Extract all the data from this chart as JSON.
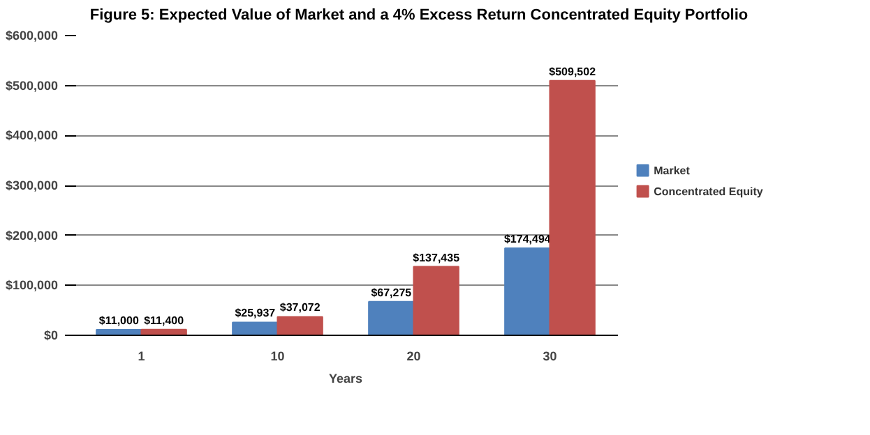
{
  "chart_data": {
    "type": "bar",
    "title": "Figure 5: Expected Value of Market and a 4% Excess Return Concentrated Equity Portfolio",
    "xlabel": "Years",
    "categories": [
      "1",
      "10",
      "20",
      "30"
    ],
    "series": [
      {
        "name": "Market",
        "color": "#4f81bd",
        "values": [
          11000,
          25937,
          67275,
          174494
        ],
        "value_labels": [
          "$11,000",
          "$25,937",
          "$67,275",
          "$174,494"
        ]
      },
      {
        "name": "Concentrated Equity",
        "color": "#c0504d",
        "values": [
          11400,
          37072,
          137435,
          509502
        ],
        "value_labels": [
          "$11,400",
          "$37,072",
          "$137,435",
          "$509,502"
        ]
      }
    ],
    "ylim": [
      0,
      600000
    ],
    "yticks": [
      {
        "value": 0,
        "label": "$0"
      },
      {
        "value": 100000,
        "label": "$100,000"
      },
      {
        "value": 200000,
        "label": "$200,000"
      },
      {
        "value": 300000,
        "label": "$300,000"
      },
      {
        "value": 400000,
        "label": "$400,000"
      },
      {
        "value": 500000,
        "label": "$500,000"
      },
      {
        "value": 600000,
        "label": "$600,000"
      }
    ],
    "grid": "y",
    "legend": "right"
  }
}
